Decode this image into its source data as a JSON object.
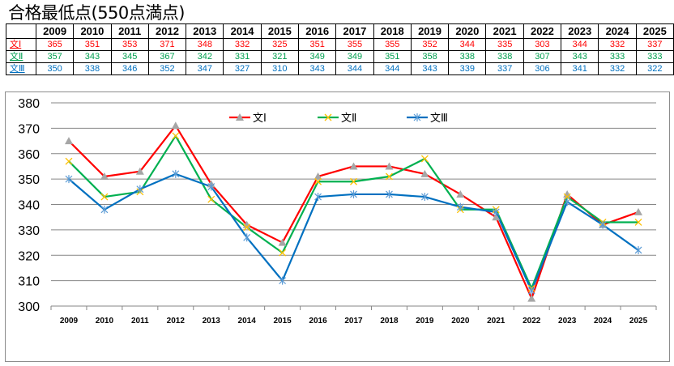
{
  "title": "合格最低点(550点満点)",
  "table": {
    "years": [
      "2009",
      "2010",
      "2011",
      "2012",
      "2013",
      "2014",
      "2015",
      "2016",
      "2017",
      "2018",
      "2019",
      "2020",
      "2021",
      "2022",
      "2023",
      "2024",
      "2025"
    ],
    "rows": [
      {
        "label": "文Ⅰ",
        "color": "#ff0000",
        "values": [
          "365",
          "351",
          "353",
          "371",
          "348",
          "332",
          "325",
          "351",
          "355",
          "355",
          "352",
          "344",
          "335",
          "303",
          "344",
          "332",
          "337"
        ]
      },
      {
        "label": "文Ⅱ",
        "color": "#00a050",
        "values": [
          "357",
          "343",
          "345",
          "367",
          "342",
          "331",
          "321",
          "349",
          "349",
          "351",
          "358",
          "338",
          "338",
          "307",
          "343",
          "333",
          "333"
        ]
      },
      {
        "label": "文Ⅲ",
        "color": "#0070c0",
        "values": [
          "350",
          "338",
          "346",
          "352",
          "347",
          "327",
          "310",
          "343",
          "344",
          "344",
          "343",
          "339",
          "337",
          "306",
          "341",
          "332",
          "322"
        ]
      }
    ]
  },
  "chart_data": {
    "type": "line",
    "title": "",
    "xlabel": "",
    "ylabel": "",
    "categories": [
      "2009",
      "2010",
      "2011",
      "2012",
      "2013",
      "2014",
      "2015",
      "2016",
      "2017",
      "2018",
      "2019",
      "2020",
      "2021",
      "2022",
      "2023",
      "2024",
      "2025"
    ],
    "ylim": [
      300,
      380
    ],
    "yticks": [
      "300",
      "310",
      "320",
      "330",
      "340",
      "350",
      "360",
      "370",
      "380"
    ],
    "grid": true,
    "legend": "top-center",
    "series": [
      {
        "name": "文Ⅰ",
        "color": "#ff0000",
        "marker": "triangle",
        "marker_color": "#a6a6a6",
        "values": [
          365,
          351,
          353,
          371,
          348,
          332,
          325,
          351,
          355,
          355,
          352,
          344,
          335,
          303,
          344,
          332,
          337
        ]
      },
      {
        "name": "文Ⅱ",
        "color": "#00b050",
        "marker": "x",
        "marker_color": "#ffc000",
        "values": [
          357,
          343,
          345,
          367,
          342,
          331,
          321,
          349,
          349,
          351,
          358,
          338,
          338,
          307,
          343,
          333,
          333
        ]
      },
      {
        "name": "文Ⅲ",
        "color": "#0070c0",
        "marker": "asterisk",
        "marker_color": "#5b9bd5",
        "values": [
          350,
          338,
          346,
          352,
          347,
          327,
          310,
          343,
          344,
          344,
          343,
          339,
          337,
          306,
          341,
          332,
          322
        ]
      }
    ]
  }
}
